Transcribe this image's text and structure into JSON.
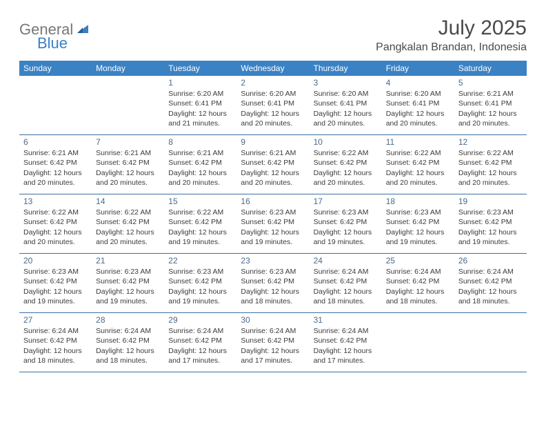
{
  "logo": {
    "text1": "General",
    "text2": "Blue"
  },
  "title": "July 2025",
  "location": "Pangkalan Brandan, Indonesia",
  "colors": {
    "header_bg": "#3b82c4",
    "header_text": "#ffffff",
    "border": "#3b6fa0",
    "daynum": "#4a6a8a",
    "body_text": "#3a3a3a",
    "logo_gray": "#777777",
    "logo_blue": "#3b7fc4"
  },
  "day_labels": [
    "Sunday",
    "Monday",
    "Tuesday",
    "Wednesday",
    "Thursday",
    "Friday",
    "Saturday"
  ],
  "weeks": [
    [
      null,
      null,
      {
        "n": "1",
        "sr": "Sunrise: 6:20 AM",
        "ss": "Sunset: 6:41 PM",
        "dl": "Daylight: 12 hours and 21 minutes."
      },
      {
        "n": "2",
        "sr": "Sunrise: 6:20 AM",
        "ss": "Sunset: 6:41 PM",
        "dl": "Daylight: 12 hours and 20 minutes."
      },
      {
        "n": "3",
        "sr": "Sunrise: 6:20 AM",
        "ss": "Sunset: 6:41 PM",
        "dl": "Daylight: 12 hours and 20 minutes."
      },
      {
        "n": "4",
        "sr": "Sunrise: 6:20 AM",
        "ss": "Sunset: 6:41 PM",
        "dl": "Daylight: 12 hours and 20 minutes."
      },
      {
        "n": "5",
        "sr": "Sunrise: 6:21 AM",
        "ss": "Sunset: 6:41 PM",
        "dl": "Daylight: 12 hours and 20 minutes."
      }
    ],
    [
      {
        "n": "6",
        "sr": "Sunrise: 6:21 AM",
        "ss": "Sunset: 6:42 PM",
        "dl": "Daylight: 12 hours and 20 minutes."
      },
      {
        "n": "7",
        "sr": "Sunrise: 6:21 AM",
        "ss": "Sunset: 6:42 PM",
        "dl": "Daylight: 12 hours and 20 minutes."
      },
      {
        "n": "8",
        "sr": "Sunrise: 6:21 AM",
        "ss": "Sunset: 6:42 PM",
        "dl": "Daylight: 12 hours and 20 minutes."
      },
      {
        "n": "9",
        "sr": "Sunrise: 6:21 AM",
        "ss": "Sunset: 6:42 PM",
        "dl": "Daylight: 12 hours and 20 minutes."
      },
      {
        "n": "10",
        "sr": "Sunrise: 6:22 AM",
        "ss": "Sunset: 6:42 PM",
        "dl": "Daylight: 12 hours and 20 minutes."
      },
      {
        "n": "11",
        "sr": "Sunrise: 6:22 AM",
        "ss": "Sunset: 6:42 PM",
        "dl": "Daylight: 12 hours and 20 minutes."
      },
      {
        "n": "12",
        "sr": "Sunrise: 6:22 AM",
        "ss": "Sunset: 6:42 PM",
        "dl": "Daylight: 12 hours and 20 minutes."
      }
    ],
    [
      {
        "n": "13",
        "sr": "Sunrise: 6:22 AM",
        "ss": "Sunset: 6:42 PM",
        "dl": "Daylight: 12 hours and 20 minutes."
      },
      {
        "n": "14",
        "sr": "Sunrise: 6:22 AM",
        "ss": "Sunset: 6:42 PM",
        "dl": "Daylight: 12 hours and 20 minutes."
      },
      {
        "n": "15",
        "sr": "Sunrise: 6:22 AM",
        "ss": "Sunset: 6:42 PM",
        "dl": "Daylight: 12 hours and 19 minutes."
      },
      {
        "n": "16",
        "sr": "Sunrise: 6:23 AM",
        "ss": "Sunset: 6:42 PM",
        "dl": "Daylight: 12 hours and 19 minutes."
      },
      {
        "n": "17",
        "sr": "Sunrise: 6:23 AM",
        "ss": "Sunset: 6:42 PM",
        "dl": "Daylight: 12 hours and 19 minutes."
      },
      {
        "n": "18",
        "sr": "Sunrise: 6:23 AM",
        "ss": "Sunset: 6:42 PM",
        "dl": "Daylight: 12 hours and 19 minutes."
      },
      {
        "n": "19",
        "sr": "Sunrise: 6:23 AM",
        "ss": "Sunset: 6:42 PM",
        "dl": "Daylight: 12 hours and 19 minutes."
      }
    ],
    [
      {
        "n": "20",
        "sr": "Sunrise: 6:23 AM",
        "ss": "Sunset: 6:42 PM",
        "dl": "Daylight: 12 hours and 19 minutes."
      },
      {
        "n": "21",
        "sr": "Sunrise: 6:23 AM",
        "ss": "Sunset: 6:42 PM",
        "dl": "Daylight: 12 hours and 19 minutes."
      },
      {
        "n": "22",
        "sr": "Sunrise: 6:23 AM",
        "ss": "Sunset: 6:42 PM",
        "dl": "Daylight: 12 hours and 19 minutes."
      },
      {
        "n": "23",
        "sr": "Sunrise: 6:23 AM",
        "ss": "Sunset: 6:42 PM",
        "dl": "Daylight: 12 hours and 18 minutes."
      },
      {
        "n": "24",
        "sr": "Sunrise: 6:24 AM",
        "ss": "Sunset: 6:42 PM",
        "dl": "Daylight: 12 hours and 18 minutes."
      },
      {
        "n": "25",
        "sr": "Sunrise: 6:24 AM",
        "ss": "Sunset: 6:42 PM",
        "dl": "Daylight: 12 hours and 18 minutes."
      },
      {
        "n": "26",
        "sr": "Sunrise: 6:24 AM",
        "ss": "Sunset: 6:42 PM",
        "dl": "Daylight: 12 hours and 18 minutes."
      }
    ],
    [
      {
        "n": "27",
        "sr": "Sunrise: 6:24 AM",
        "ss": "Sunset: 6:42 PM",
        "dl": "Daylight: 12 hours and 18 minutes."
      },
      {
        "n": "28",
        "sr": "Sunrise: 6:24 AM",
        "ss": "Sunset: 6:42 PM",
        "dl": "Daylight: 12 hours and 18 minutes."
      },
      {
        "n": "29",
        "sr": "Sunrise: 6:24 AM",
        "ss": "Sunset: 6:42 PM",
        "dl": "Daylight: 12 hours and 17 minutes."
      },
      {
        "n": "30",
        "sr": "Sunrise: 6:24 AM",
        "ss": "Sunset: 6:42 PM",
        "dl": "Daylight: 12 hours and 17 minutes."
      },
      {
        "n": "31",
        "sr": "Sunrise: 6:24 AM",
        "ss": "Sunset: 6:42 PM",
        "dl": "Daylight: 12 hours and 17 minutes."
      },
      null,
      null
    ]
  ]
}
